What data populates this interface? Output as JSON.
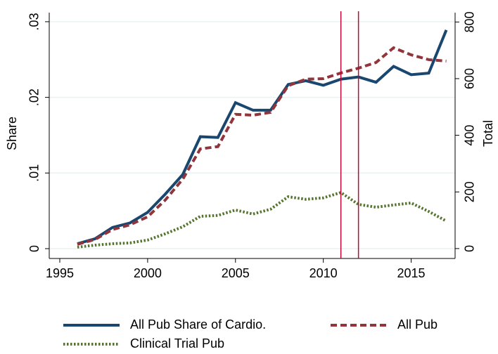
{
  "chart_data": {
    "type": "line",
    "y_label": "Share",
    "y2_label": "Total",
    "x": [
      1996,
      1997,
      1998,
      1999,
      2000,
      2001,
      2002,
      2003,
      2004,
      2005,
      2006,
      2007,
      2008,
      2009,
      2010,
      2011,
      2012,
      2013,
      2014,
      2015,
      2016,
      2017
    ],
    "series": [
      {
        "name": "All Pub Share of Cardio.",
        "color": "#1a476f",
        "style": "solid",
        "values": [
          0.00065,
          0.0013,
          0.0028,
          0.0034,
          0.0048,
          0.0072,
          0.0098,
          0.0148,
          0.0147,
          0.0193,
          0.0183,
          0.0183,
          0.0217,
          0.0222,
          0.0216,
          0.0224,
          0.0227,
          0.022,
          0.0241,
          0.023,
          0.0232,
          0.0289
        ]
      },
      {
        "name": "All Pub",
        "color": "#90353b",
        "style": "dash",
        "axis": "y2",
        "values": [
          15,
          32,
          67,
          84,
          112,
          171,
          245,
          352,
          360,
          474,
          471,
          481,
          575,
          598,
          600,
          620,
          637,
          657,
          709,
          684,
          667,
          662
        ]
      },
      {
        "name": "Clinical Trial Pub",
        "color": "#55752f",
        "style": "dot",
        "axis": "y2",
        "values": [
          5,
          12,
          17,
          20,
          30,
          52,
          77,
          114,
          117,
          136,
          122,
          139,
          183,
          174,
          179,
          198,
          156,
          146,
          154,
          161,
          131,
          97
        ]
      }
    ],
    "xlim": [
      1994.4,
      2017.5
    ],
    "xticks": [
      1995,
      2000,
      2005,
      2010,
      2015
    ],
    "ylim": [
      -0.0013,
      0.0312
    ],
    "yticks": [
      0,
      {
        "value": 0.01,
        "label": ".01"
      },
      {
        "value": 0.02,
        "label": ".02"
      },
      {
        "value": 0.03,
        "label": ".03"
      }
    ],
    "y2lim": [
      -35,
      833
    ],
    "y2ticks": [
      0,
      200,
      400,
      600,
      800
    ],
    "vlines": [
      2011,
      2012
    ],
    "vline_color": "#c10534",
    "grid": true
  }
}
